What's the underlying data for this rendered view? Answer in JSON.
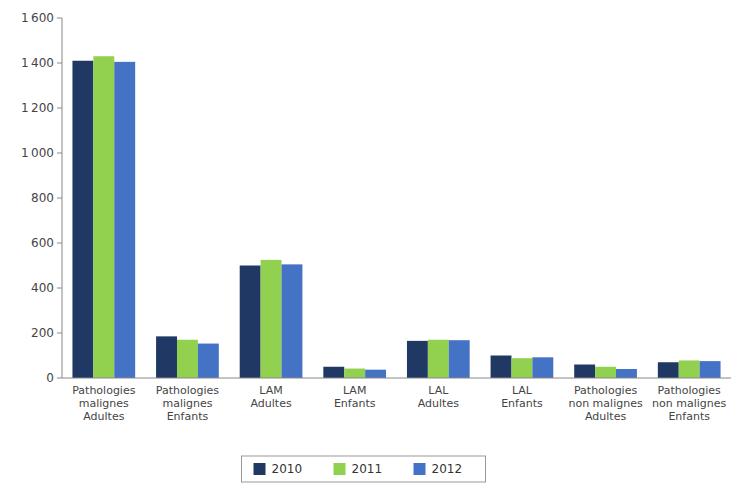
{
  "chart_data": {
    "type": "bar",
    "categories": [
      "Pathologies\nmalignes\nAdultes",
      "Pathologies\nmalignes\nEnfants",
      "LAM\nAdultes",
      "LAM\nEnfants",
      "LAL\nAdultes",
      "LAL\nEnfants",
      "Pathologies\nnon malignes\nAdultes",
      "Pathologies\nnon malignes\nEnfants"
    ],
    "series": [
      {
        "name": "2010",
        "color": "#1F3864",
        "values": [
          1410,
          185,
          500,
          50,
          165,
          100,
          60,
          70
        ]
      },
      {
        "name": "2011",
        "color": "#92D050",
        "values": [
          1430,
          170,
          525,
          42,
          170,
          88,
          50,
          78
        ]
      },
      {
        "name": "2012",
        "color": "#4472C4",
        "values": [
          1405,
          153,
          505,
          37,
          168,
          92,
          40,
          75
        ]
      }
    ],
    "ylim": [
      0,
      1600
    ],
    "yticks": [
      0,
      200,
      400,
      600,
      800,
      {
        "value": 1000,
        "label": "1 000"
      },
      {
        "value": 1200,
        "label": "1 200"
      },
      {
        "value": 1400,
        "label": "1 400"
      },
      {
        "value": 1600,
        "label": "1 600"
      }
    ],
    "grid": false,
    "legend": "bottom"
  }
}
